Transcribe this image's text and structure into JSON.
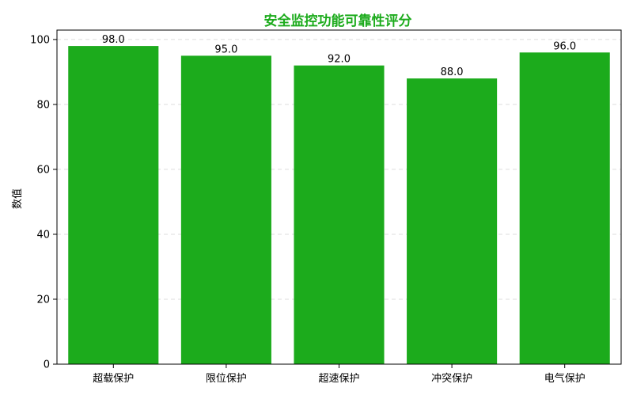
{
  "chart_data": {
    "type": "bar",
    "title": "安全监控功能可靠性评分",
    "xlabel": "",
    "ylabel": "数值",
    "categories": [
      "超载保护",
      "限位保护",
      "超速保护",
      "冲突保护",
      "电气保护"
    ],
    "values": [
      98.0,
      95.0,
      92.0,
      88.0,
      96.0
    ],
    "data_labels": [
      "98.0",
      "95.0",
      "92.0",
      "88.0",
      "96.0"
    ],
    "y_ticks": [
      0,
      20,
      40,
      60,
      80,
      100
    ],
    "y_tick_labels": [
      "0",
      "20",
      "40",
      "60",
      "80",
      "100"
    ],
    "ylim": [
      0,
      102.9
    ],
    "grid": "horizontal-dashed",
    "legend": "none",
    "colors": {
      "bar": "#1cab1c",
      "title": "#1cab1c",
      "grid": "#dddddd",
      "axis": "#000000",
      "text": "#000000"
    }
  }
}
